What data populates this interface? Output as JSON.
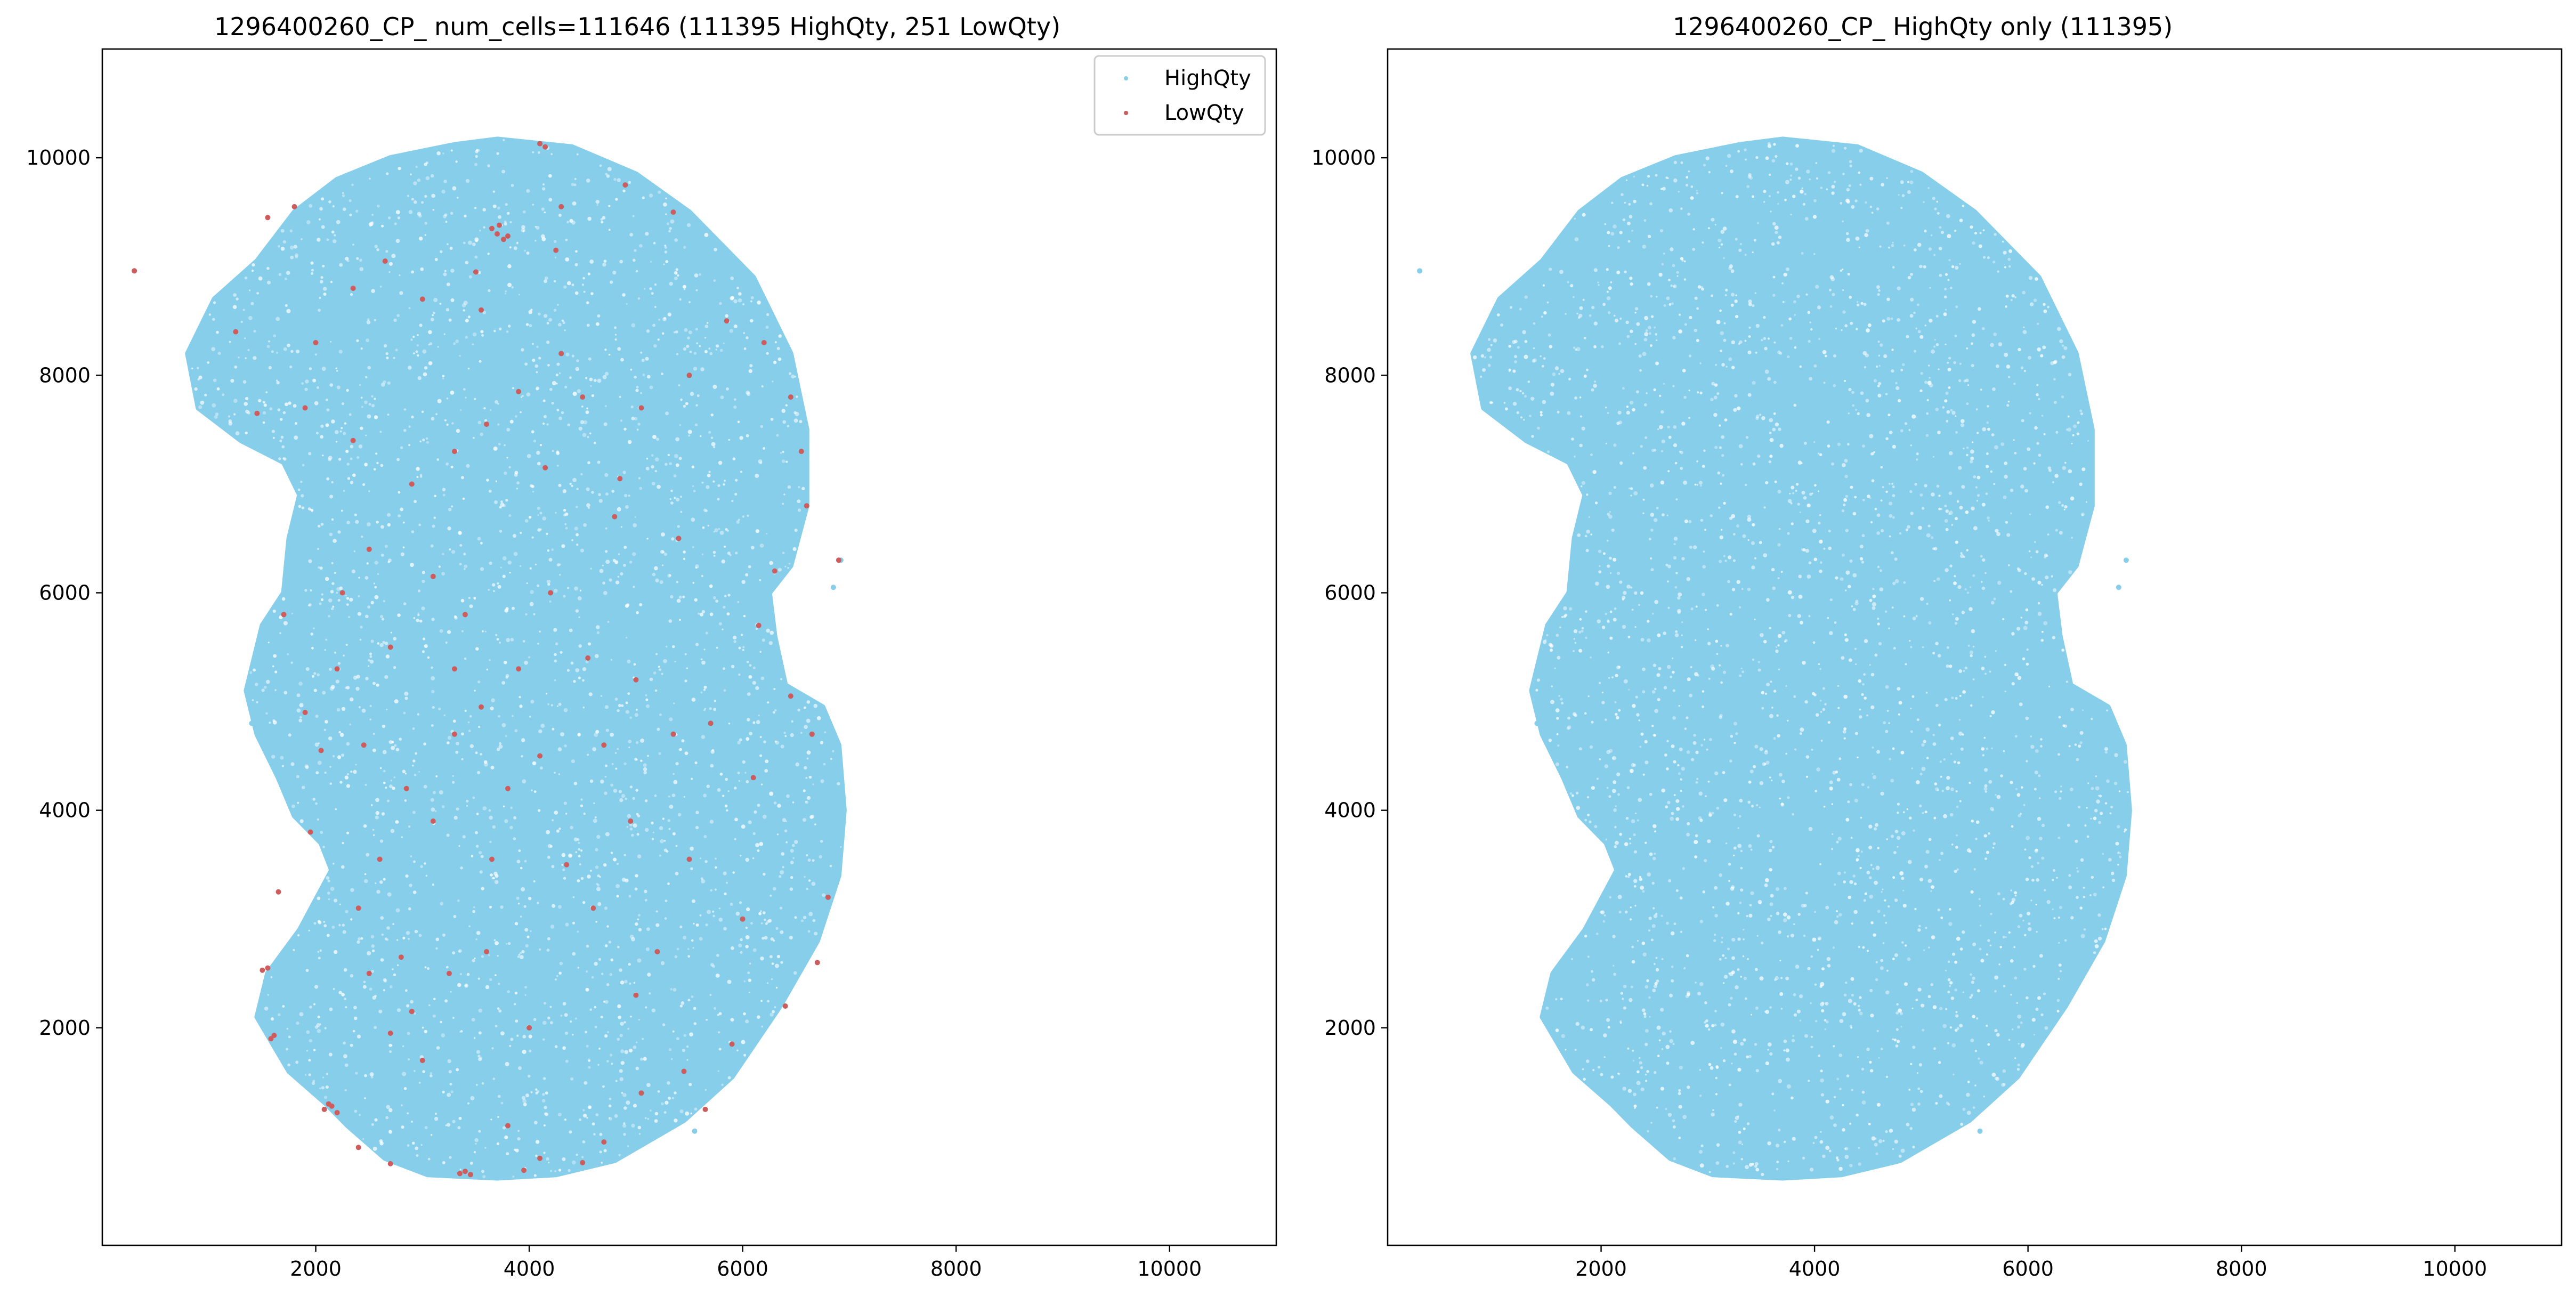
{
  "chart_data": [
    {
      "type": "scatter",
      "title": "1296400260_CP_ num_cells=111646 (111395 HighQty, 251 LowQty)",
      "xlabel": "",
      "ylabel": "",
      "xlim": [
        0,
        11000
      ],
      "ylim": [
        0,
        11000
      ],
      "xticks": [
        2000,
        4000,
        6000,
        8000,
        10000
      ],
      "yticks": [
        2000,
        4000,
        6000,
        8000,
        10000
      ],
      "xtick_labels": [
        "2000",
        "4000",
        "6000",
        "8000",
        "10000"
      ],
      "ytick_labels": [
        "2000",
        "4000",
        "6000",
        "8000",
        "10000"
      ],
      "grid": false,
      "legend": "top-right",
      "series": [
        {
          "name": "HighQty",
          "color": "#87ceeb",
          "count": 111395,
          "outline": [
            [
              3700,
              10170
            ],
            [
              3300,
              10120
            ],
            [
              2700,
              10000
            ],
            [
              2200,
              9800
            ],
            [
              1800,
              9500
            ],
            [
              1450,
              9050
            ],
            [
              1050,
              8700
            ],
            [
              800,
              8200
            ],
            [
              900,
              7700
            ],
            [
              1300,
              7400
            ],
            [
              1700,
              7200
            ],
            [
              1850,
              6900
            ],
            [
              1750,
              6500
            ],
            [
              1700,
              6000
            ],
            [
              1500,
              5700
            ],
            [
              1350,
              5100
            ],
            [
              1450,
              4700
            ],
            [
              1650,
              4300
            ],
            [
              1800,
              3950
            ],
            [
              2050,
              3700
            ],
            [
              2150,
              3450
            ],
            [
              1850,
              2900
            ],
            [
              1550,
              2500
            ],
            [
              1450,
              2100
            ],
            [
              1750,
              1600
            ],
            [
              2100,
              1300
            ],
            [
              2300,
              1100
            ],
            [
              2650,
              800
            ],
            [
              3050,
              650
            ],
            [
              3700,
              620
            ],
            [
              4250,
              650
            ],
            [
              4800,
              780
            ],
            [
              5450,
              1150
            ],
            [
              5900,
              1550
            ],
            [
              6350,
              2200
            ],
            [
              6700,
              2800
            ],
            [
              6900,
              3400
            ],
            [
              6950,
              4000
            ],
            [
              6900,
              4600
            ],
            [
              6750,
              4950
            ],
            [
              6400,
              5150
            ],
            [
              6300,
              5600
            ],
            [
              6250,
              6000
            ],
            [
              6450,
              6250
            ],
            [
              6600,
              6800
            ],
            [
              6600,
              7500
            ],
            [
              6450,
              8200
            ],
            [
              6100,
              8900
            ],
            [
              5500,
              9500
            ],
            [
              5000,
              9850
            ],
            [
              4400,
              10100
            ]
          ],
          "far_points": [
            [
              300,
              8960
            ],
            [
              6850,
              6050
            ],
            [
              6920,
              6300
            ],
            [
              5550,
              1050
            ],
            [
              1400,
              4800
            ]
          ]
        },
        {
          "name": "LowQty",
          "color": "#cd5c5c",
          "count": 251,
          "points": [
            [
              300,
              8960
            ],
            [
              4150,
              10100
            ],
            [
              4100,
              10130
            ],
            [
              3700,
              9300
            ],
            [
              3800,
              9280
            ],
            [
              3650,
              9350
            ],
            [
              3720,
              9380
            ],
            [
              3760,
              9250
            ],
            [
              2150,
              1280
            ],
            [
              2080,
              1250
            ],
            [
              2200,
              1220
            ],
            [
              2120,
              1300
            ],
            [
              3350,
              660
            ],
            [
              3450,
              650
            ],
            [
              3400,
              680
            ],
            [
              1550,
              2550
            ],
            [
              1500,
              2530
            ],
            [
              1580,
              1900
            ],
            [
              1610,
              1930
            ],
            [
              1550,
              9450
            ],
            [
              1800,
              9550
            ],
            [
              2650,
              9050
            ],
            [
              3000,
              8700
            ],
            [
              3550,
              8600
            ],
            [
              4300,
              9550
            ],
            [
              4900,
              9750
            ],
            [
              5350,
              9500
            ],
            [
              5850,
              8500
            ],
            [
              6200,
              8300
            ],
            [
              6450,
              7800
            ],
            [
              6550,
              7300
            ],
            [
              6600,
              6800
            ],
            [
              6900,
              6300
            ],
            [
              5050,
              7700
            ],
            [
              4500,
              7800
            ],
            [
              3900,
              7850
            ],
            [
              3600,
              7550
            ],
            [
              3300,
              7300
            ],
            [
              2900,
              7000
            ],
            [
              2350,
              7400
            ],
            [
              1900,
              7700
            ],
            [
              1450,
              7650
            ],
            [
              1250,
              8400
            ],
            [
              2500,
              6400
            ],
            [
              3100,
              6150
            ],
            [
              3400,
              5800
            ],
            [
              2700,
              5500
            ],
            [
              2200,
              5300
            ],
            [
              1900,
              4900
            ],
            [
              2050,
              4550
            ],
            [
              2450,
              4600
            ],
            [
              2850,
              4200
            ],
            [
              3300,
              4700
            ],
            [
              3550,
              4950
            ],
            [
              4100,
              4500
            ],
            [
              4550,
              5400
            ],
            [
              5000,
              5200
            ],
            [
              5700,
              4800
            ],
            [
              6150,
              5700
            ],
            [
              6300,
              6200
            ],
            [
              5400,
              6500
            ],
            [
              4800,
              6700
            ],
            [
              4200,
              6000
            ],
            [
              3900,
              5300
            ],
            [
              4350,
              3500
            ],
            [
              4950,
              3900
            ],
            [
              5500,
              3550
            ],
            [
              6000,
              3000
            ],
            [
              6650,
              4700
            ],
            [
              6800,
              3200
            ],
            [
              6700,
              2600
            ],
            [
              6400,
              2200
            ],
            [
              5900,
              1850
            ],
            [
              5450,
              1600
            ],
            [
              5050,
              1400
            ],
            [
              4700,
              950
            ],
            [
              4100,
              800
            ],
            [
              3800,
              1100
            ],
            [
              3000,
              1700
            ],
            [
              2700,
              1950
            ],
            [
              2500,
              2500
            ],
            [
              2400,
              3100
            ],
            [
              3600,
              2700
            ],
            [
              4000,
              2000
            ],
            [
              3250,
              2500
            ],
            [
              2800,
              2650
            ],
            [
              2600,
              3550
            ],
            [
              3100,
              3900
            ],
            [
              3650,
              3550
            ],
            [
              4600,
              3100
            ],
            [
              5200,
              2700
            ],
            [
              2400,
              900
            ],
            [
              2700,
              750
            ],
            [
              3950,
              690
            ],
            [
              4500,
              760
            ],
            [
              5650,
              1250
            ],
            [
              2350,
              8800
            ],
            [
              2000,
              8300
            ],
            [
              4300,
              8200
            ],
            [
              5500,
              8000
            ],
            [
              2250,
              6000
            ],
            [
              3300,
              5300
            ],
            [
              4700,
              4600
            ],
            [
              5350,
              4700
            ],
            [
              3800,
              4200
            ],
            [
              4150,
              7150
            ],
            [
              4850,
              7050
            ],
            [
              1700,
              5800
            ],
            [
              1950,
              3800
            ],
            [
              2900,
              2150
            ],
            [
              5000,
              2300
            ],
            [
              6100,
              4300
            ],
            [
              3500,
              8950
            ],
            [
              4250,
              9150
            ],
            [
              6450,
              5050
            ],
            [
              1650,
              3250
            ]
          ]
        }
      ]
    },
    {
      "type": "scatter",
      "title": "1296400260_CP_ HighQty only (111395)",
      "xlabel": "",
      "ylabel": "",
      "xlim": [
        0,
        11000
      ],
      "ylim": [
        0,
        11000
      ],
      "xticks": [
        2000,
        4000,
        6000,
        8000,
        10000
      ],
      "yticks": [
        2000,
        4000,
        6000,
        8000,
        10000
      ],
      "xtick_labels": [
        "2000",
        "4000",
        "6000",
        "8000",
        "10000"
      ],
      "ytick_labels": [
        "2000",
        "4000",
        "6000",
        "8000",
        "10000"
      ],
      "grid": false,
      "legend": "none",
      "series": [
        {
          "color": "#87ceeb",
          "count": 111395,
          "outline": [
            [
              3700,
              10170
            ],
            [
              3300,
              10120
            ],
            [
              2700,
              10000
            ],
            [
              2200,
              9800
            ],
            [
              1800,
              9500
            ],
            [
              1450,
              9050
            ],
            [
              1050,
              8700
            ],
            [
              800,
              8200
            ],
            [
              900,
              7700
            ],
            [
              1300,
              7400
            ],
            [
              1700,
              7200
            ],
            [
              1850,
              6900
            ],
            [
              1750,
              6500
            ],
            [
              1700,
              6000
            ],
            [
              1500,
              5700
            ],
            [
              1350,
              5100
            ],
            [
              1450,
              4700
            ],
            [
              1650,
              4300
            ],
            [
              1800,
              3950
            ],
            [
              2050,
              3700
            ],
            [
              2150,
              3450
            ],
            [
              1850,
              2900
            ],
            [
              1550,
              2500
            ],
            [
              1450,
              2100
            ],
            [
              1750,
              1600
            ],
            [
              2100,
              1300
            ],
            [
              2300,
              1100
            ],
            [
              2650,
              800
            ],
            [
              3050,
              650
            ],
            [
              3700,
              620
            ],
            [
              4250,
              650
            ],
            [
              4800,
              780
            ],
            [
              5450,
              1150
            ],
            [
              5900,
              1550
            ],
            [
              6350,
              2200
            ],
            [
              6700,
              2800
            ],
            [
              6900,
              3400
            ],
            [
              6950,
              4000
            ],
            [
              6900,
              4600
            ],
            [
              6750,
              4950
            ],
            [
              6400,
              5150
            ],
            [
              6300,
              5600
            ],
            [
              6250,
              6000
            ],
            [
              6450,
              6250
            ],
            [
              6600,
              6800
            ],
            [
              6600,
              7500
            ],
            [
              6450,
              8200
            ],
            [
              6100,
              8900
            ],
            [
              5500,
              9500
            ],
            [
              5000,
              9850
            ],
            [
              4400,
              10100
            ]
          ],
          "far_points": [
            [
              300,
              8960
            ],
            [
              6850,
              6050
            ],
            [
              6920,
              6300
            ],
            [
              5550,
              1050
            ],
            [
              1400,
              4800
            ]
          ]
        }
      ]
    }
  ]
}
